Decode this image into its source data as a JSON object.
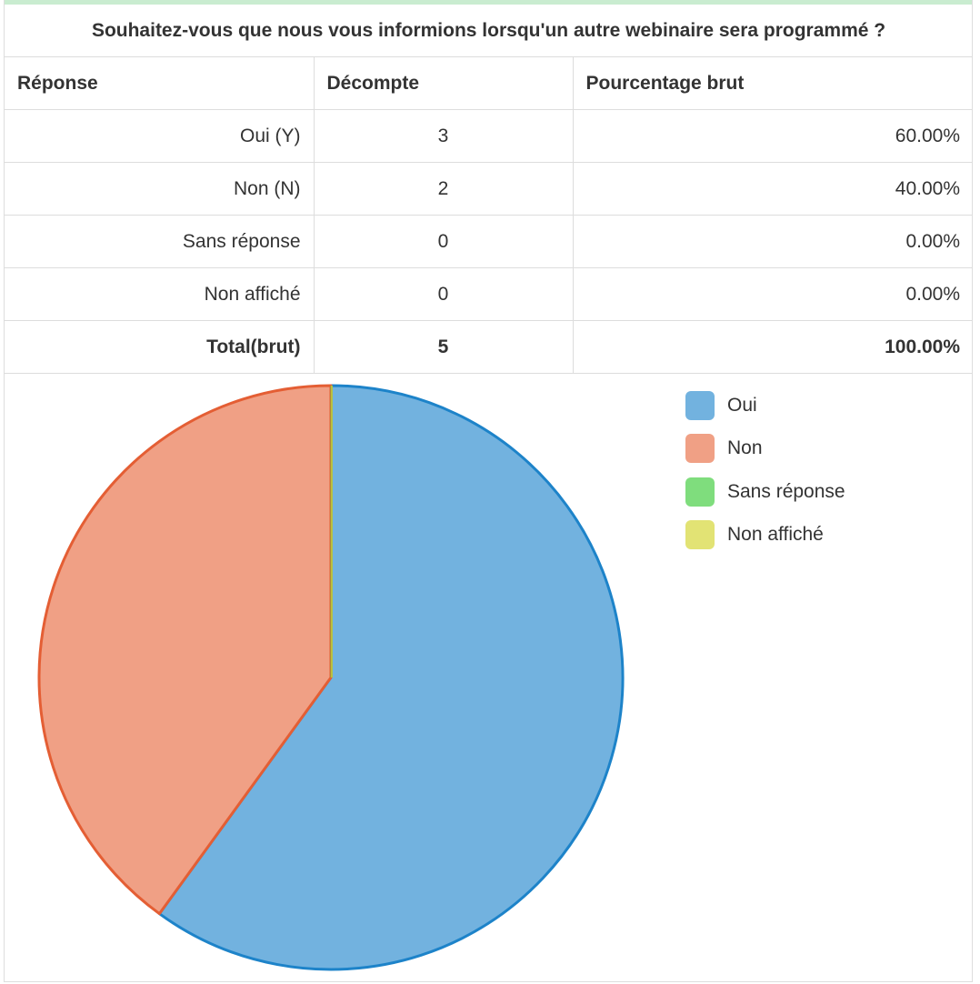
{
  "question": "Souhaitez-vous que nous vous informions lorsqu'un autre webinaire sera programmé ?",
  "colors": {
    "top_bar": "#c9ecd0",
    "slices": [
      "#72b2df",
      "#f0a085",
      "#7fdd7d",
      "#e2e374"
    ],
    "slice_strokes": [
      "#1d83c9",
      "#e45e34",
      "#47c744",
      "#bcc13a"
    ]
  },
  "table": {
    "headers": [
      "Réponse",
      "Décompte",
      "Pourcentage brut"
    ],
    "rows": [
      {
        "label": "Oui (Y)",
        "count": "3",
        "percent": "60.00%"
      },
      {
        "label": "Non (N)",
        "count": "2",
        "percent": "40.00%"
      },
      {
        "label": "Sans réponse",
        "count": "0",
        "percent": "0.00%"
      },
      {
        "label": "Non affiché",
        "count": "0",
        "percent": "0.00%"
      }
    ],
    "total": {
      "label": "Total(brut)",
      "count": "5",
      "percent": "100.00%"
    }
  },
  "chart_data": {
    "type": "pie",
    "categories": [
      "Oui",
      "Non",
      "Sans réponse",
      "Non affiché"
    ],
    "values": [
      3,
      2,
      0,
      0
    ],
    "legend": "right"
  }
}
